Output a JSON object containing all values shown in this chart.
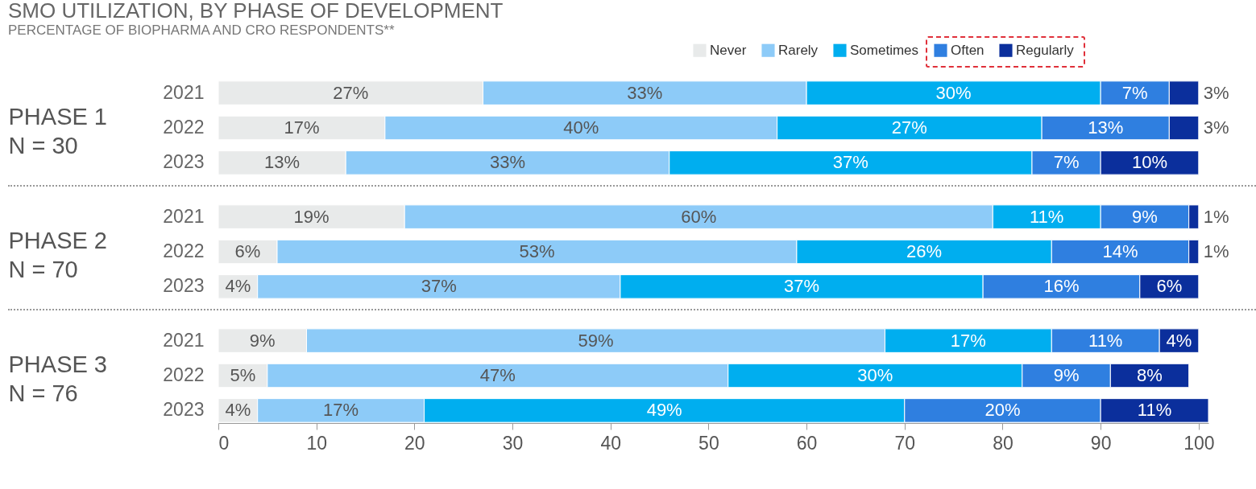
{
  "chart_data": [
    {
      "type": "bar",
      "orientation": "horizontal",
      "stacked": true,
      "title": "SMO UTILIZATION, BY PHASE OF DEVELOPMENT",
      "subtitle": "PERCENTAGE OF BIOPHARMA AND CRO RESPONDENTS**",
      "ylabel": "PHASE 1\nN = 30",
      "categories": [
        "2021",
        "2022",
        "2023"
      ],
      "xlim": [
        0,
        100
      ],
      "tick_labels": "y",
      "legend": "top right",
      "grid": false,
      "series": [
        {
          "name": "Never",
          "color": "#e8eaea",
          "values": [
            27,
            17,
            13
          ],
          "value_labels": [
            "27%",
            "17%",
            "13%"
          ]
        },
        {
          "name": "Rarely",
          "color": "#8dcbf8",
          "values": [
            33,
            40,
            33
          ],
          "value_labels": [
            "33%",
            "40%",
            "33%"
          ]
        },
        {
          "name": "Sometimes",
          "color": "#00aeef",
          "values": [
            30,
            27,
            37
          ],
          "value_labels": [
            "30%",
            "27%",
            "37%"
          ]
        },
        {
          "name": "Often",
          "color": "#2f7fe0",
          "values": [
            7,
            13,
            7
          ],
          "value_labels": [
            "7%",
            "13%",
            "7%"
          ]
        },
        {
          "name": "Regularly",
          "color": "#0b2f9c",
          "values": [
            3,
            3,
            10
          ],
          "value_labels": [
            "3%",
            "3%",
            "10%"
          ]
        }
      ]
    },
    {
      "type": "bar",
      "orientation": "horizontal",
      "stacked": true,
      "ylabel": "PHASE 2\nN = 70",
      "categories": [
        "2021",
        "2022",
        "2023"
      ],
      "xlim": [
        0,
        100
      ],
      "tick_labels": "y",
      "grid": false,
      "series": [
        {
          "color": "#e8eaea",
          "values": [
            19,
            6,
            4
          ],
          "value_labels": [
            "19%",
            "6%",
            "4%"
          ]
        },
        {
          "color": "#8dcbf8",
          "values": [
            60,
            53,
            37
          ],
          "value_labels": [
            "60%",
            "53%",
            "37%"
          ]
        },
        {
          "color": "#00aeef",
          "values": [
            11,
            26,
            37
          ],
          "value_labels": [
            "11%",
            "26%",
            "37%"
          ]
        },
        {
          "color": "#2f7fe0",
          "values": [
            9,
            14,
            16
          ],
          "value_labels": [
            "9%",
            "14%",
            "16%"
          ]
        },
        {
          "color": "#0b2f9c",
          "values": [
            1,
            1,
            6
          ],
          "value_labels": [
            "1%",
            "1%",
            "6%"
          ]
        }
      ]
    },
    {
      "type": "bar",
      "orientation": "horizontal",
      "stacked": true,
      "ylabel": "PHASE 3\nN = 76",
      "categories": [
        "2021",
        "2022",
        "2023"
      ],
      "xlim": [
        0,
        101
      ],
      "xticks": [
        0,
        10,
        20,
        30,
        40,
        50,
        60,
        70,
        80,
        90,
        100
      ],
      "grid": false,
      "series": [
        {
          "color": "#e8eaea",
          "values": [
            9,
            5,
            4
          ],
          "value_labels": [
            "9%",
            "5%",
            "4%"
          ]
        },
        {
          "color": "#8dcbf8",
          "values": [
            59,
            47,
            17
          ],
          "value_labels": [
            "59%",
            "47%",
            "17%"
          ]
        },
        {
          "color": "#00aeef",
          "values": [
            17,
            30,
            49
          ],
          "value_labels": [
            "17%",
            "30%",
            "49%"
          ]
        },
        {
          "color": "#2f7fe0",
          "values": [
            11,
            9,
            20
          ],
          "value_labels": [
            "11%",
            "9%",
            "20%"
          ]
        },
        {
          "color": "#0b2f9c",
          "values": [
            4,
            8,
            11
          ],
          "value_labels": [
            "4%",
            "8%",
            "11%"
          ]
        }
      ]
    }
  ]
}
